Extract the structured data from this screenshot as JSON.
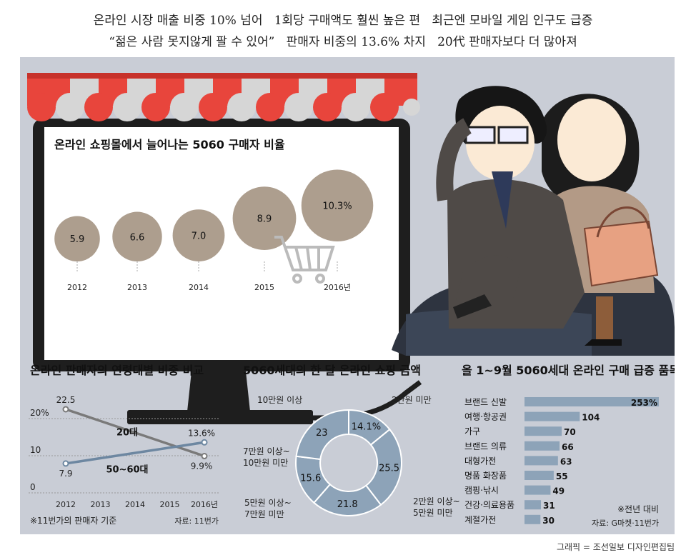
{
  "headlines": [
    "온라인 시장 매출 비중 10% 넘어   1회당 구매액도 훨씬 높은 편   최근엔 모바일 게임 인구도 급증",
    "“젊은 사람 못지않게 팔 수 있어”   판매자 비중의 13.6% 차지   20代 판매자보다 더 많아져"
  ],
  "credit": "그래픽 = 조선일보 디자인편집팀",
  "colors": {
    "panel": "#c9cdd6",
    "bubble": "#ad9e8e",
    "awning_red": "#e8453c",
    "line_dark": "#7a7a7a",
    "line_blue": "#6d87a1",
    "donut_blue": "#8da3b8",
    "bar_blue": "#8da3b8"
  },
  "icons": [
    "shopping-cart-icon",
    "monitor-icon",
    "awning-illustration",
    "elderly-couple-illustration"
  ],
  "chart_data": [
    {
      "type": "bubble",
      "title": "온라인 쇼핑몰에서 늘어나는 5060 구매자 비율",
      "categories": [
        "2012",
        "2013",
        "2014",
        "2015",
        "2016년"
      ],
      "values": [
        5.9,
        6.6,
        7.0,
        8.9,
        10.3
      ],
      "labels": [
        "5.9",
        "6.6",
        "7.0",
        "8.9",
        "10.3%"
      ]
    },
    {
      "type": "line",
      "title": "온라인 판매자의 연령대별 비중 비교",
      "x": [
        "2012",
        "2013",
        "2014",
        "2015",
        "2016년"
      ],
      "yticks": [
        "20%",
        "10",
        "0"
      ],
      "ylim": [
        0,
        25
      ],
      "series": [
        {
          "name": "20대",
          "points": [
            {
              "x": "2012",
              "y": 22.5
            },
            {
              "x": "2016년",
              "y": 9.9
            }
          ],
          "labels": [
            "22.5",
            "9.9%"
          ]
        },
        {
          "name": "50~60대",
          "points": [
            {
              "x": "2012",
              "y": 7.9
            },
            {
              "x": "2016년",
              "y": 13.6
            }
          ],
          "labels": [
            "7.9",
            "13.6%"
          ]
        }
      ],
      "note": "※11번가의 판매자 기준",
      "source": "자료: 11번가"
    },
    {
      "type": "pie",
      "title": "5060세대의 한 달 온라인 쇼핑 금액",
      "slices": [
        {
          "label": "2만원 미만",
          "value": 14.1,
          "display": "14.1%"
        },
        {
          "label": "2만원 이상~\n5만원 미만",
          "value": 25.5,
          "display": "25.5"
        },
        {
          "label": "5만원 이상~\n7만원 미만",
          "value": 21.8,
          "display": "21.8"
        },
        {
          "label": "7만원 이상~\n10만원 미만",
          "value": 15.6,
          "display": "15.6"
        },
        {
          "label": "10만원 이상",
          "value": 23,
          "display": "23"
        }
      ]
    },
    {
      "type": "bar",
      "title": "올 1~9월 5060세대 온라인 구매 급증 품목",
      "categories": [
        "브랜드 신발",
        "여행·항공권",
        "가구",
        "브랜드 의류",
        "대형가전",
        "명품 화장품",
        "캠핑·낚시",
        "건강·의료용품",
        "계절가전"
      ],
      "values": [
        253,
        104,
        70,
        66,
        63,
        55,
        49,
        31,
        30
      ],
      "labels": [
        "253%",
        "104",
        "70",
        "66",
        "63",
        "55",
        "49",
        "31",
        "30"
      ],
      "note": "※전년 대비",
      "source": "자료: G마켓·11번가"
    }
  ]
}
